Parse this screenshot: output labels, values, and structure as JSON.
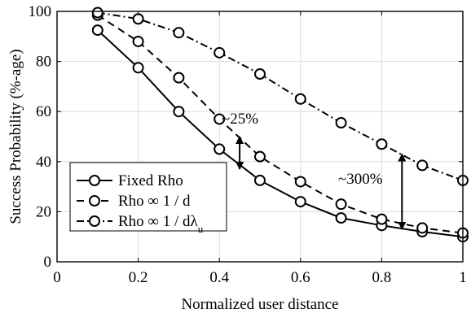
{
  "chart_data": {
    "type": "line",
    "xlabel": "Normalized user distance",
    "ylabel": "Success Probability (%-age)",
    "xlim": [
      0,
      1
    ],
    "ylim": [
      0,
      100
    ],
    "xticks": [
      0,
      0.2,
      0.4,
      0.6,
      0.8,
      1
    ],
    "xtick_labels": [
      "0",
      "0.2",
      "0.4",
      "0.6",
      "0.8",
      "1"
    ],
    "yticks": [
      0,
      20,
      40,
      60,
      80,
      100
    ],
    "ytick_labels": [
      "0",
      "20",
      "40",
      "60",
      "80",
      "100"
    ],
    "grid": true,
    "legend_position": "bottom-left",
    "x": [
      0.1,
      0.2,
      0.3,
      0.4,
      0.5,
      0.6,
      0.7,
      0.8,
      0.9,
      1.0
    ],
    "series": [
      {
        "name": "Fixed Rho",
        "style": "solid",
        "values": [
          92.5,
          77.5,
          60,
          45,
          32.5,
          24,
          17.5,
          14.5,
          12,
          10
        ]
      },
      {
        "name": "Rho ∞ 1 / d",
        "style": "dashed",
        "values": [
          98.5,
          88,
          73.5,
          57,
          42,
          32,
          23,
          17,
          13.5,
          11.5
        ]
      },
      {
        "name": "Rho ∞ 1 / dλ",
        "name_subscript": "u",
        "style": "dashdot",
        "values": [
          99.5,
          97,
          91.5,
          83.5,
          75,
          65,
          55.5,
          47,
          38.5,
          32.5
        ]
      }
    ],
    "annotations": [
      {
        "text": "~25%",
        "x": 0.45,
        "y1": 37,
        "y2": 50
      },
      {
        "text": "~300%",
        "x": 0.85,
        "y1": 13,
        "y2": 43
      }
    ],
    "colors": {
      "line": "#000000",
      "grid": "#dcdcdc",
      "background": "#ffffff"
    }
  }
}
